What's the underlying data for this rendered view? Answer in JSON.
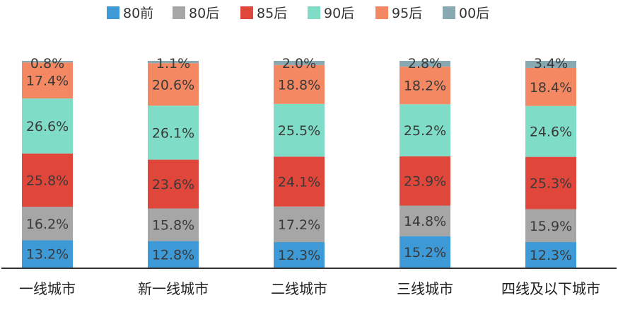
{
  "chart_data": {
    "type": "bar",
    "stacked": true,
    "percent_stacked": true,
    "title": "",
    "xlabel": "",
    "ylabel": "",
    "ylim": [
      0,
      100
    ],
    "grid": false,
    "legend_position": "top",
    "categories": [
      "一线城市",
      "新一线城市",
      "二线城市",
      "三线城市",
      "四线及以下城市"
    ],
    "series": [
      {
        "name": "80前",
        "color": "#3d9ad6",
        "values": [
          13.2,
          12.8,
          12.3,
          15.2,
          12.3
        ],
        "labels": [
          "13.2%",
          "12.8%",
          "12.3%",
          "15.2%",
          "12.3%"
        ]
      },
      {
        "name": "80后",
        "color": "#a6a6a6",
        "values": [
          16.2,
          15.8,
          17.2,
          14.8,
          15.9
        ],
        "labels": [
          "16.2%",
          "15.8%",
          "17.2%",
          "14.8%",
          "15.9%"
        ]
      },
      {
        "name": "85后",
        "color": "#e0463a",
        "values": [
          25.8,
          23.6,
          24.1,
          23.9,
          25.3
        ],
        "labels": [
          "25.8%",
          "23.6%",
          "24.1%",
          "23.9%",
          "25.3%"
        ]
      },
      {
        "name": "90后",
        "color": "#7fdcc6",
        "values": [
          26.6,
          26.1,
          25.5,
          25.2,
          24.6
        ],
        "labels": [
          "26.6%",
          "26.1%",
          "25.5%",
          "25.2%",
          "24.6%"
        ]
      },
      {
        "name": "95后",
        "color": "#f38862",
        "values": [
          17.4,
          20.6,
          18.8,
          18.2,
          18.4
        ],
        "labels": [
          "17.4%",
          "20.6%",
          "18.8%",
          "18.2%",
          "18.4%"
        ]
      },
      {
        "name": "00后",
        "color": "#88a8b2",
        "values": [
          0.8,
          1.1,
          2.0,
          2.8,
          3.4
        ],
        "labels": [
          "0.8%",
          "1.1%",
          "2.0%",
          "2.8%",
          "3.4%"
        ]
      }
    ],
    "axis_color": "#333333"
  }
}
